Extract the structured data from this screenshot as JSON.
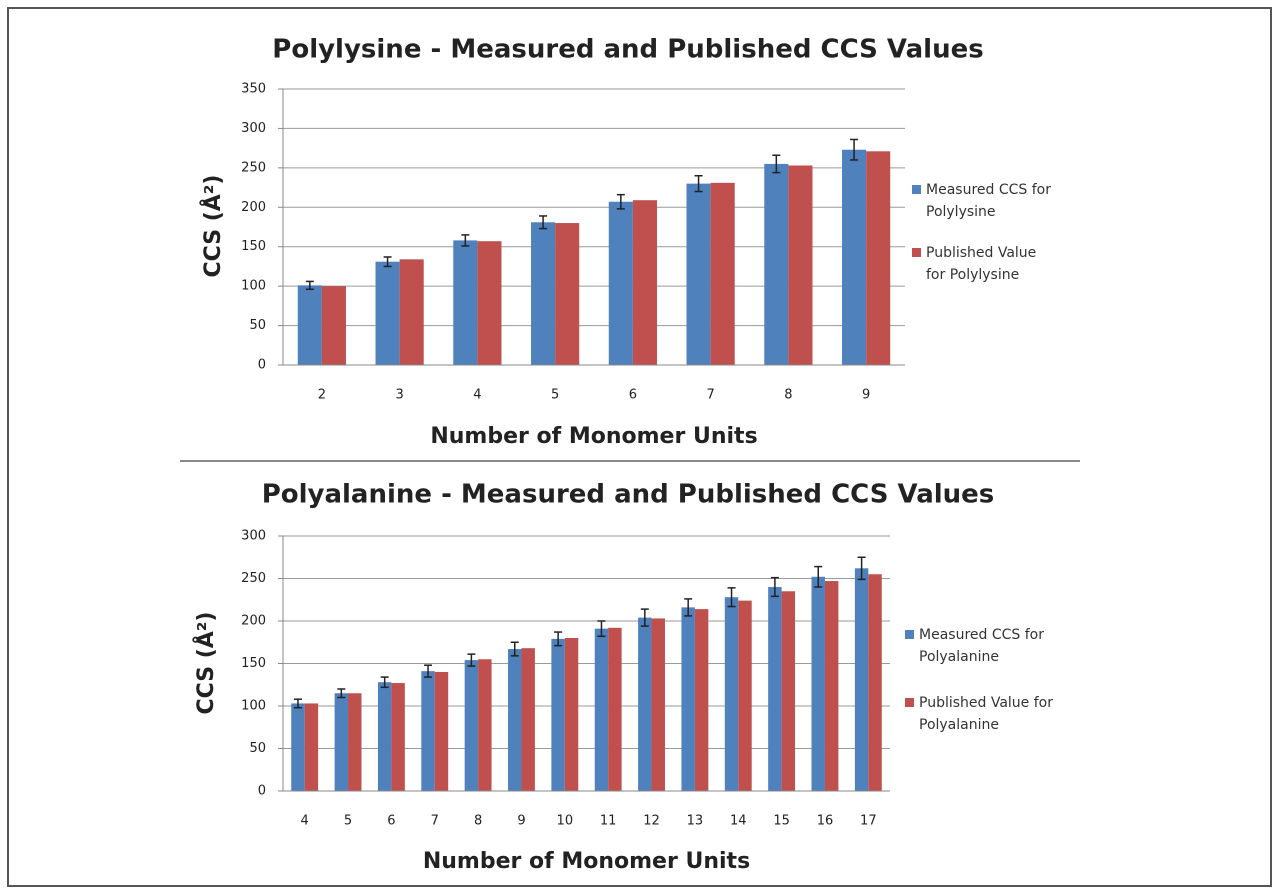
{
  "chart_data": [
    {
      "type": "bar",
      "title": "Polylysine - Measured and Published CCS Values",
      "x_label": "Number of Monomer Units",
      "y_label": "CCS (Å²)",
      "categories": [
        "2",
        "3",
        "4",
        "5",
        "6",
        "7",
        "8",
        "9"
      ],
      "series": [
        {
          "name": "Measured CCS for Polylysine",
          "color": "#4f81bd",
          "values": [
            101,
            131,
            158,
            181,
            207,
            230,
            255,
            273
          ],
          "errors": [
            5,
            6,
            7,
            8,
            9,
            10,
            11,
            13
          ]
        },
        {
          "name": "Published Value for Polylysine",
          "color": "#c0504d",
          "values": [
            100,
            134,
            157,
            180,
            209,
            231,
            253,
            271
          ]
        }
      ],
      "ylim": [
        0,
        350
      ],
      "yticks": [
        0,
        50,
        100,
        150,
        200,
        250,
        300,
        350
      ],
      "grid": true,
      "legend": "right"
    },
    {
      "type": "bar",
      "title": "Polyalanine - Measured and Published CCS Values",
      "x_label": "Number of Monomer Units",
      "y_label": "CCS (Å²)",
      "categories": [
        "4",
        "5",
        "6",
        "7",
        "8",
        "9",
        "10",
        "11",
        "12",
        "13",
        "14",
        "15",
        "16",
        "17"
      ],
      "series": [
        {
          "name": "Measured CCS for Polyalanine",
          "color": "#4f81bd",
          "values": [
            103,
            115,
            128,
            141,
            154,
            167,
            179,
            191,
            204,
            216,
            228,
            240,
            252,
            262
          ],
          "errors": [
            5,
            5,
            6,
            7,
            7,
            8,
            8,
            9,
            10,
            10,
            11,
            11,
            12,
            13
          ]
        },
        {
          "name": "Published Value for Polyalanine",
          "color": "#c0504d",
          "values": [
            103,
            115,
            127,
            140,
            155,
            168,
            180,
            192,
            203,
            214,
            224,
            235,
            247,
            255
          ]
        }
      ],
      "ylim": [
        0,
        300
      ],
      "yticks": [
        0,
        50,
        100,
        150,
        200,
        250,
        300
      ],
      "grid": true,
      "legend": "right"
    }
  ]
}
